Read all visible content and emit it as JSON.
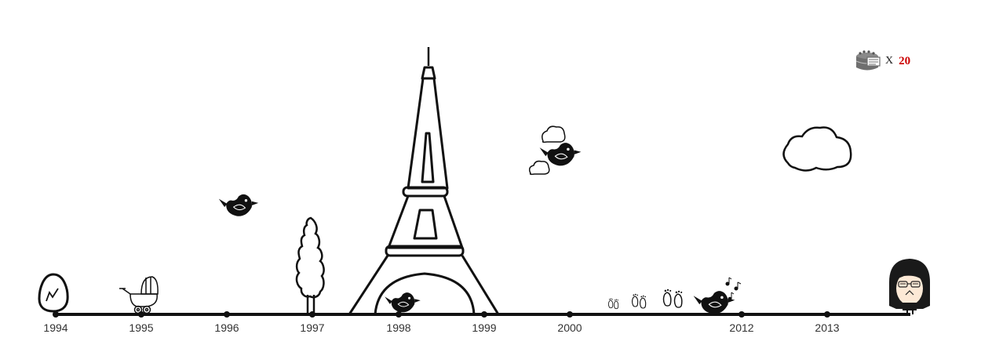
{
  "timeline": {
    "years": [
      {
        "label": "1994"
      },
      {
        "label": "1995"
      },
      {
        "label": "1996"
      },
      {
        "label": "1997"
      },
      {
        "label": "1998"
      },
      {
        "label": "1999"
      },
      {
        "label": "2000"
      },
      {
        "label": "2012"
      },
      {
        "label": "2013"
      }
    ]
  },
  "counter": {
    "multiplier": "X",
    "value": "20",
    "value_color": "#cc0000",
    "icon": "cake-icon"
  },
  "icons": [
    "egg-icon",
    "stroller-icon",
    "bird-icon",
    "tree-icon",
    "eiffel-tower-icon",
    "cloud-icon",
    "footprints-icon",
    "music-notes-icon",
    "avatar"
  ]
}
